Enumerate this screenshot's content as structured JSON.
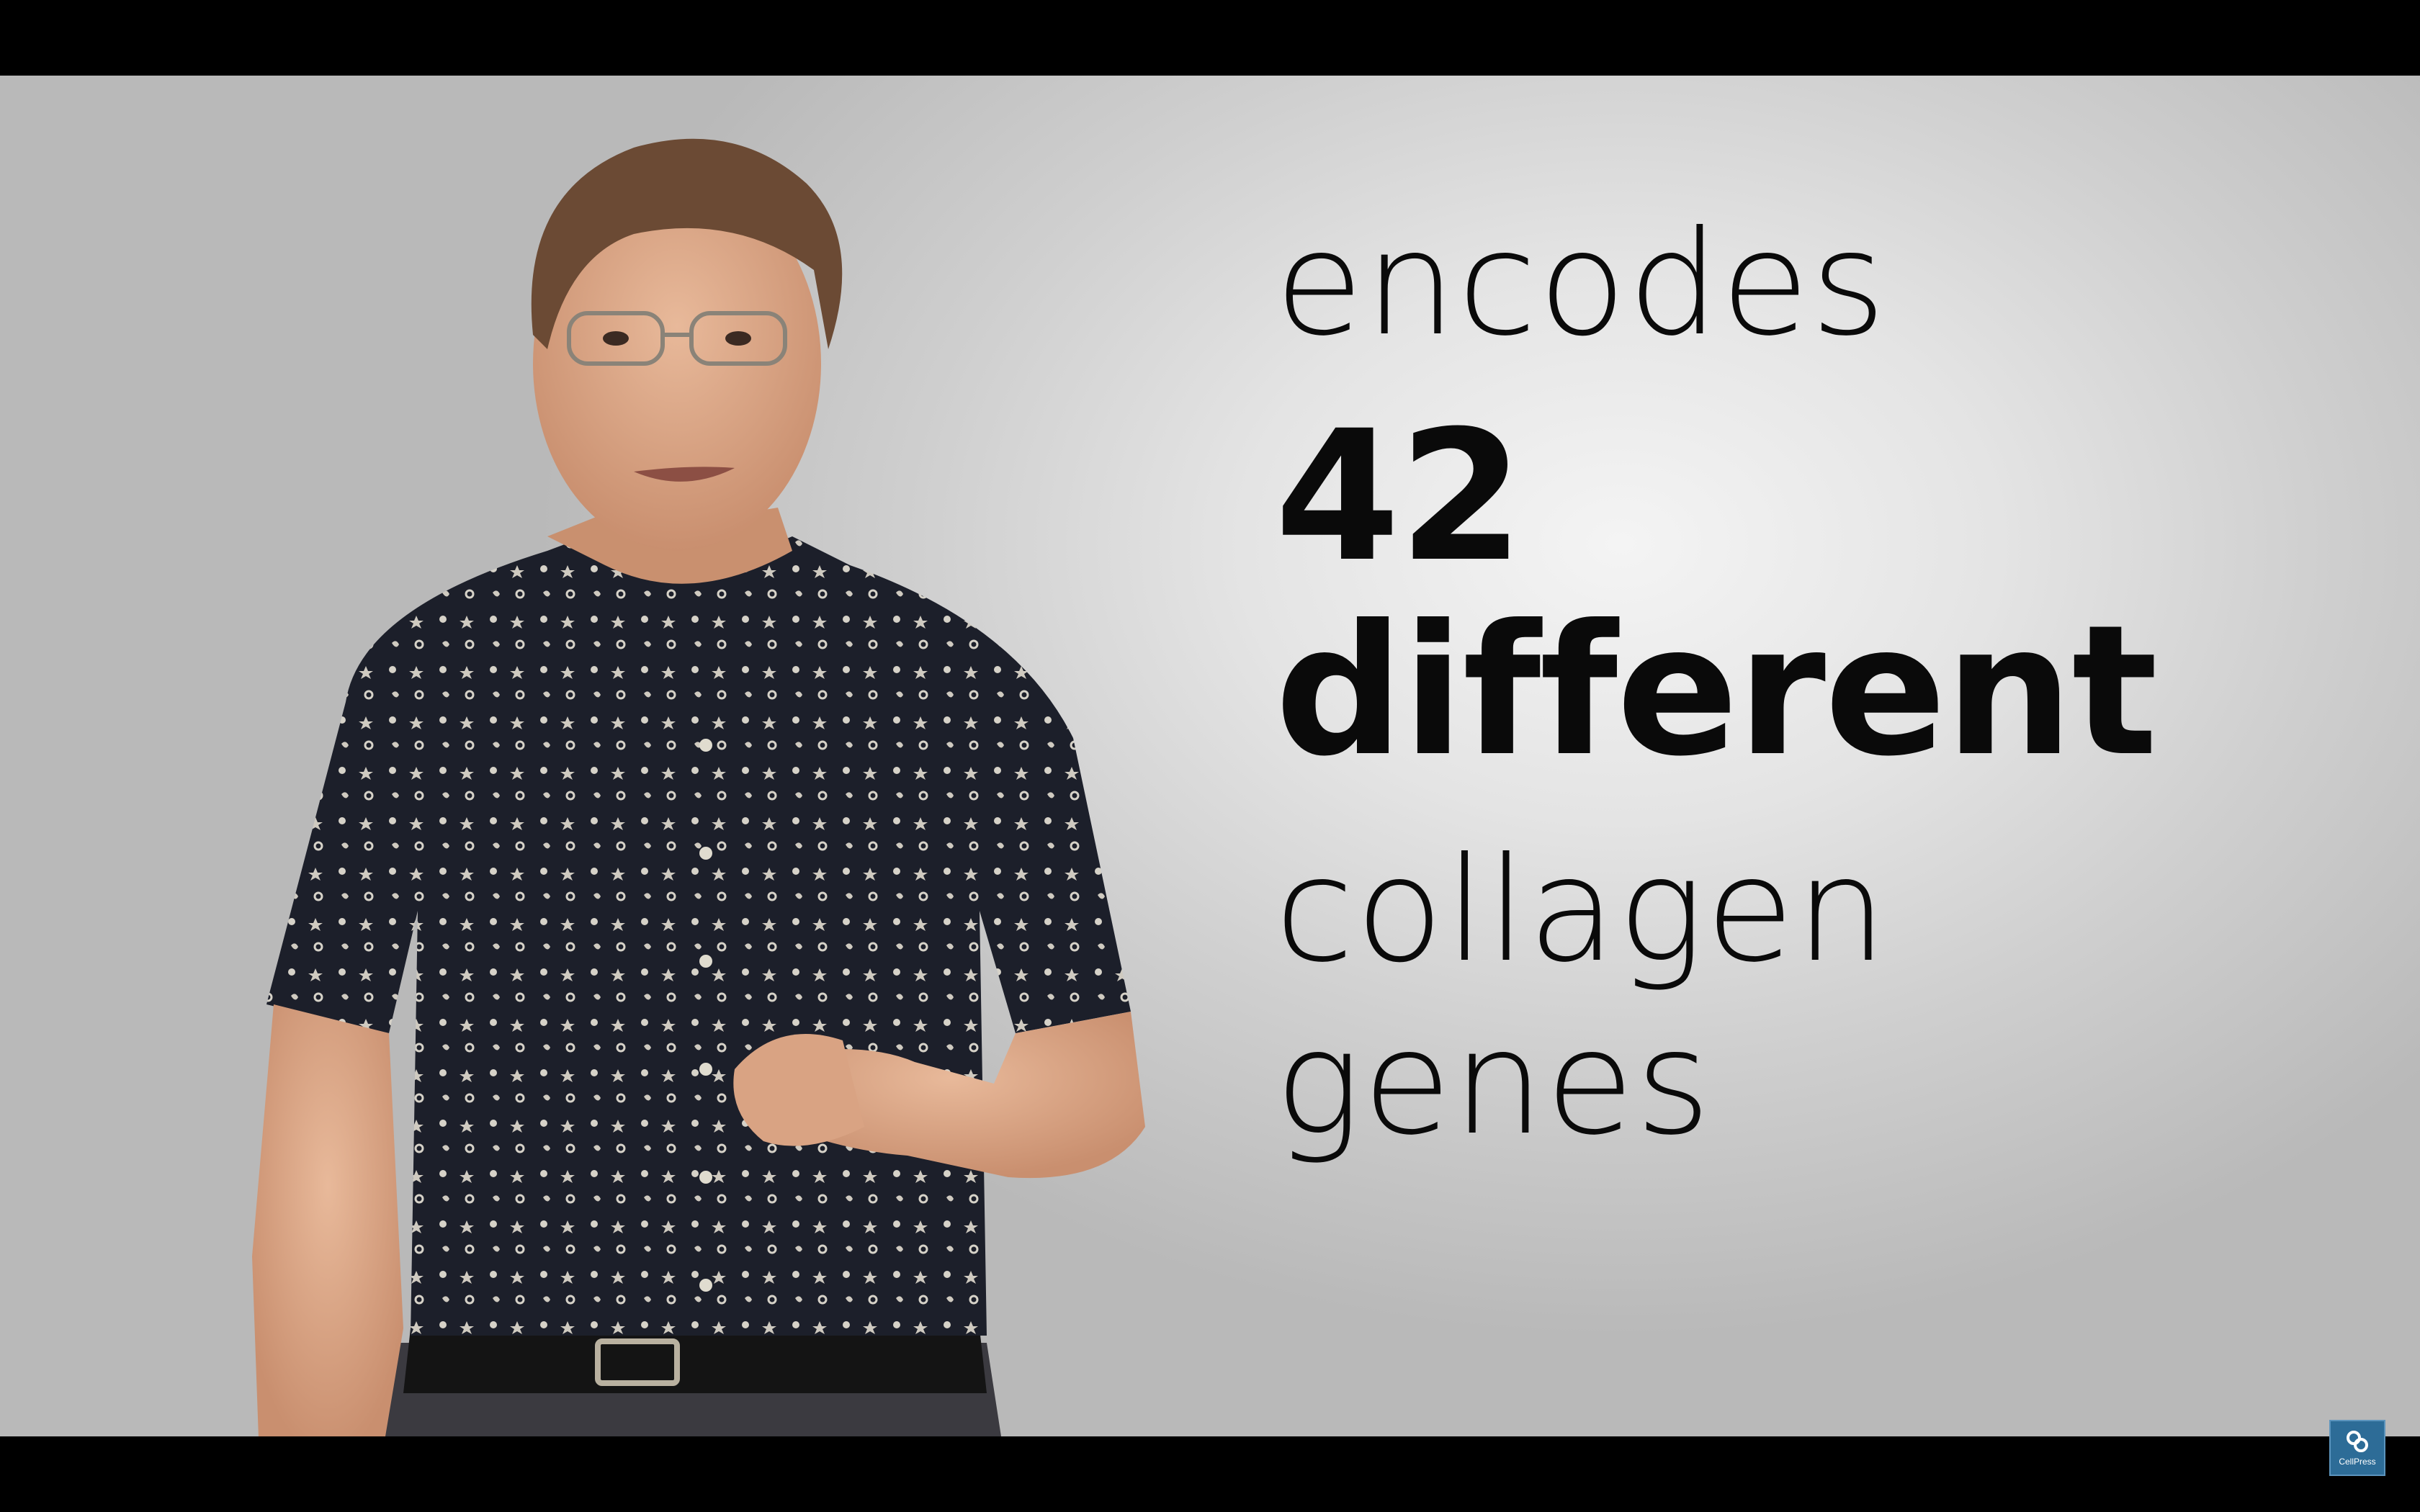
{
  "caption": {
    "line1": "encodes",
    "line2": "42",
    "line3": "different",
    "line4": "collagen",
    "line5": "genes"
  },
  "watermark": {
    "label": "CellPress",
    "icon": "cellpress-logo-icon",
    "color": "#2d6c97"
  },
  "colors": {
    "background": "#e6e6e6",
    "text": "#0a0a0a",
    "shirt": "#1c1f2a",
    "letterbox": "#000000"
  }
}
